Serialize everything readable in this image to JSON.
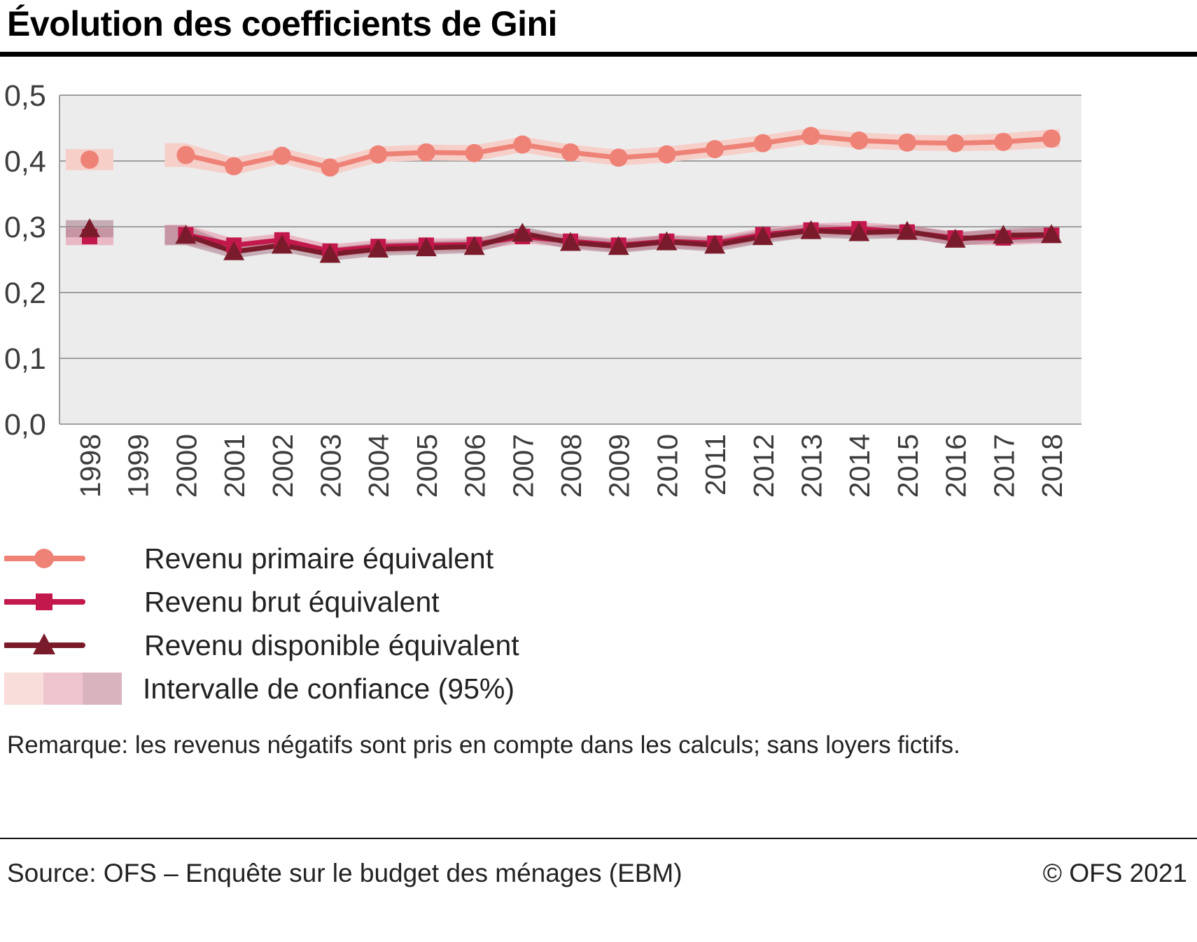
{
  "title": "Évolution des coefficients de Gini",
  "note": "Remarque: les revenus négatifs sont pris en compte dans les calculs; sans loyers fictifs.",
  "footer": {
    "source": "Source: OFS – Enquête sur le budget des ménages (EBM)",
    "copyright": "© OFS 2021"
  },
  "legend": [
    {
      "label": "Revenu primaire équivalent",
      "marker": "circle",
      "color": "#ee8277"
    },
    {
      "label": "Revenu brut équivalent",
      "marker": "square",
      "color": "#c2184c"
    },
    {
      "label": "Revenu disponible équivalent",
      "marker": "triangle",
      "color": "#7a1b2b"
    },
    {
      "label": "Intervalle de confiance (95%)",
      "marker": "band",
      "band_colors": [
        "#f8ddda",
        "#eec5cf",
        "#d9b4be"
      ]
    }
  ],
  "chart_data": {
    "type": "line",
    "title": "Évolution des coefficients de Gini",
    "x": [
      1998,
      1999,
      2000,
      2001,
      2002,
      2003,
      2004,
      2005,
      2006,
      2007,
      2008,
      2009,
      2010,
      2011,
      2012,
      2013,
      2014,
      2015,
      2016,
      2017,
      2018
    ],
    "ylim": [
      0,
      0.5
    ],
    "yticks": [
      "0,0",
      "0,1",
      "0,2",
      "0,3",
      "0,4",
      "0,5"
    ],
    "grid": true,
    "plot_bg": "#ececec",
    "grid_color": "#9f9f9f",
    "tick_label_color": "#3d3d3d",
    "legend_position": "bottom-left",
    "series": [
      {
        "name": "Revenu primaire équivalent",
        "marker": "circle",
        "color": "#ee8277",
        "band_color": "#f6cfc9",
        "band_opacity": 1,
        "values": [
          0.402,
          null,
          0.409,
          0.392,
          0.408,
          0.39,
          0.41,
          0.413,
          0.412,
          0.425,
          0.413,
          0.405,
          0.41,
          0.418,
          0.427,
          0.438,
          0.431,
          0.428,
          0.427,
          0.429,
          0.434
        ],
        "ci95_halfwidth": [
          0.016,
          null,
          0.018,
          0.013,
          0.012,
          0.012,
          0.012,
          0.012,
          0.012,
          0.012,
          0.012,
          0.012,
          0.012,
          0.012,
          0.012,
          0.012,
          0.012,
          0.012,
          0.012,
          0.013,
          0.014
        ]
      },
      {
        "name": "Revenu brut équivalent",
        "marker": "square",
        "color": "#c2184c",
        "band_color": "#e8b4c1",
        "band_opacity": 0.9,
        "values": [
          0.285,
          null,
          0.288,
          0.272,
          0.28,
          0.263,
          0.27,
          0.272,
          0.273,
          0.285,
          0.278,
          0.272,
          0.278,
          0.275,
          0.288,
          0.295,
          0.297,
          0.292,
          0.283,
          0.283,
          0.287
        ],
        "ci95_halfwidth": [
          0.013,
          null,
          0.015,
          0.01,
          0.01,
          0.01,
          0.01,
          0.01,
          0.01,
          0.01,
          0.01,
          0.01,
          0.01,
          0.01,
          0.01,
          0.01,
          0.01,
          0.01,
          0.01,
          0.011,
          0.012
        ]
      },
      {
        "name": "Revenu disponible équivalent",
        "marker": "triangle",
        "color": "#7a1b2b",
        "band_color": "#a87886",
        "band_opacity": 0.55,
        "values": [
          0.297,
          null,
          0.287,
          0.262,
          0.272,
          0.258,
          0.266,
          0.268,
          0.27,
          0.29,
          0.276,
          0.27,
          0.277,
          0.272,
          0.285,
          0.294,
          0.291,
          0.293,
          0.281,
          0.287,
          0.288
        ],
        "ci95_halfwidth": [
          0.013,
          null,
          0.015,
          0.01,
          0.01,
          0.01,
          0.01,
          0.01,
          0.01,
          0.01,
          0.01,
          0.01,
          0.01,
          0.01,
          0.01,
          0.01,
          0.01,
          0.01,
          0.01,
          0.011,
          0.012
        ]
      }
    ]
  }
}
